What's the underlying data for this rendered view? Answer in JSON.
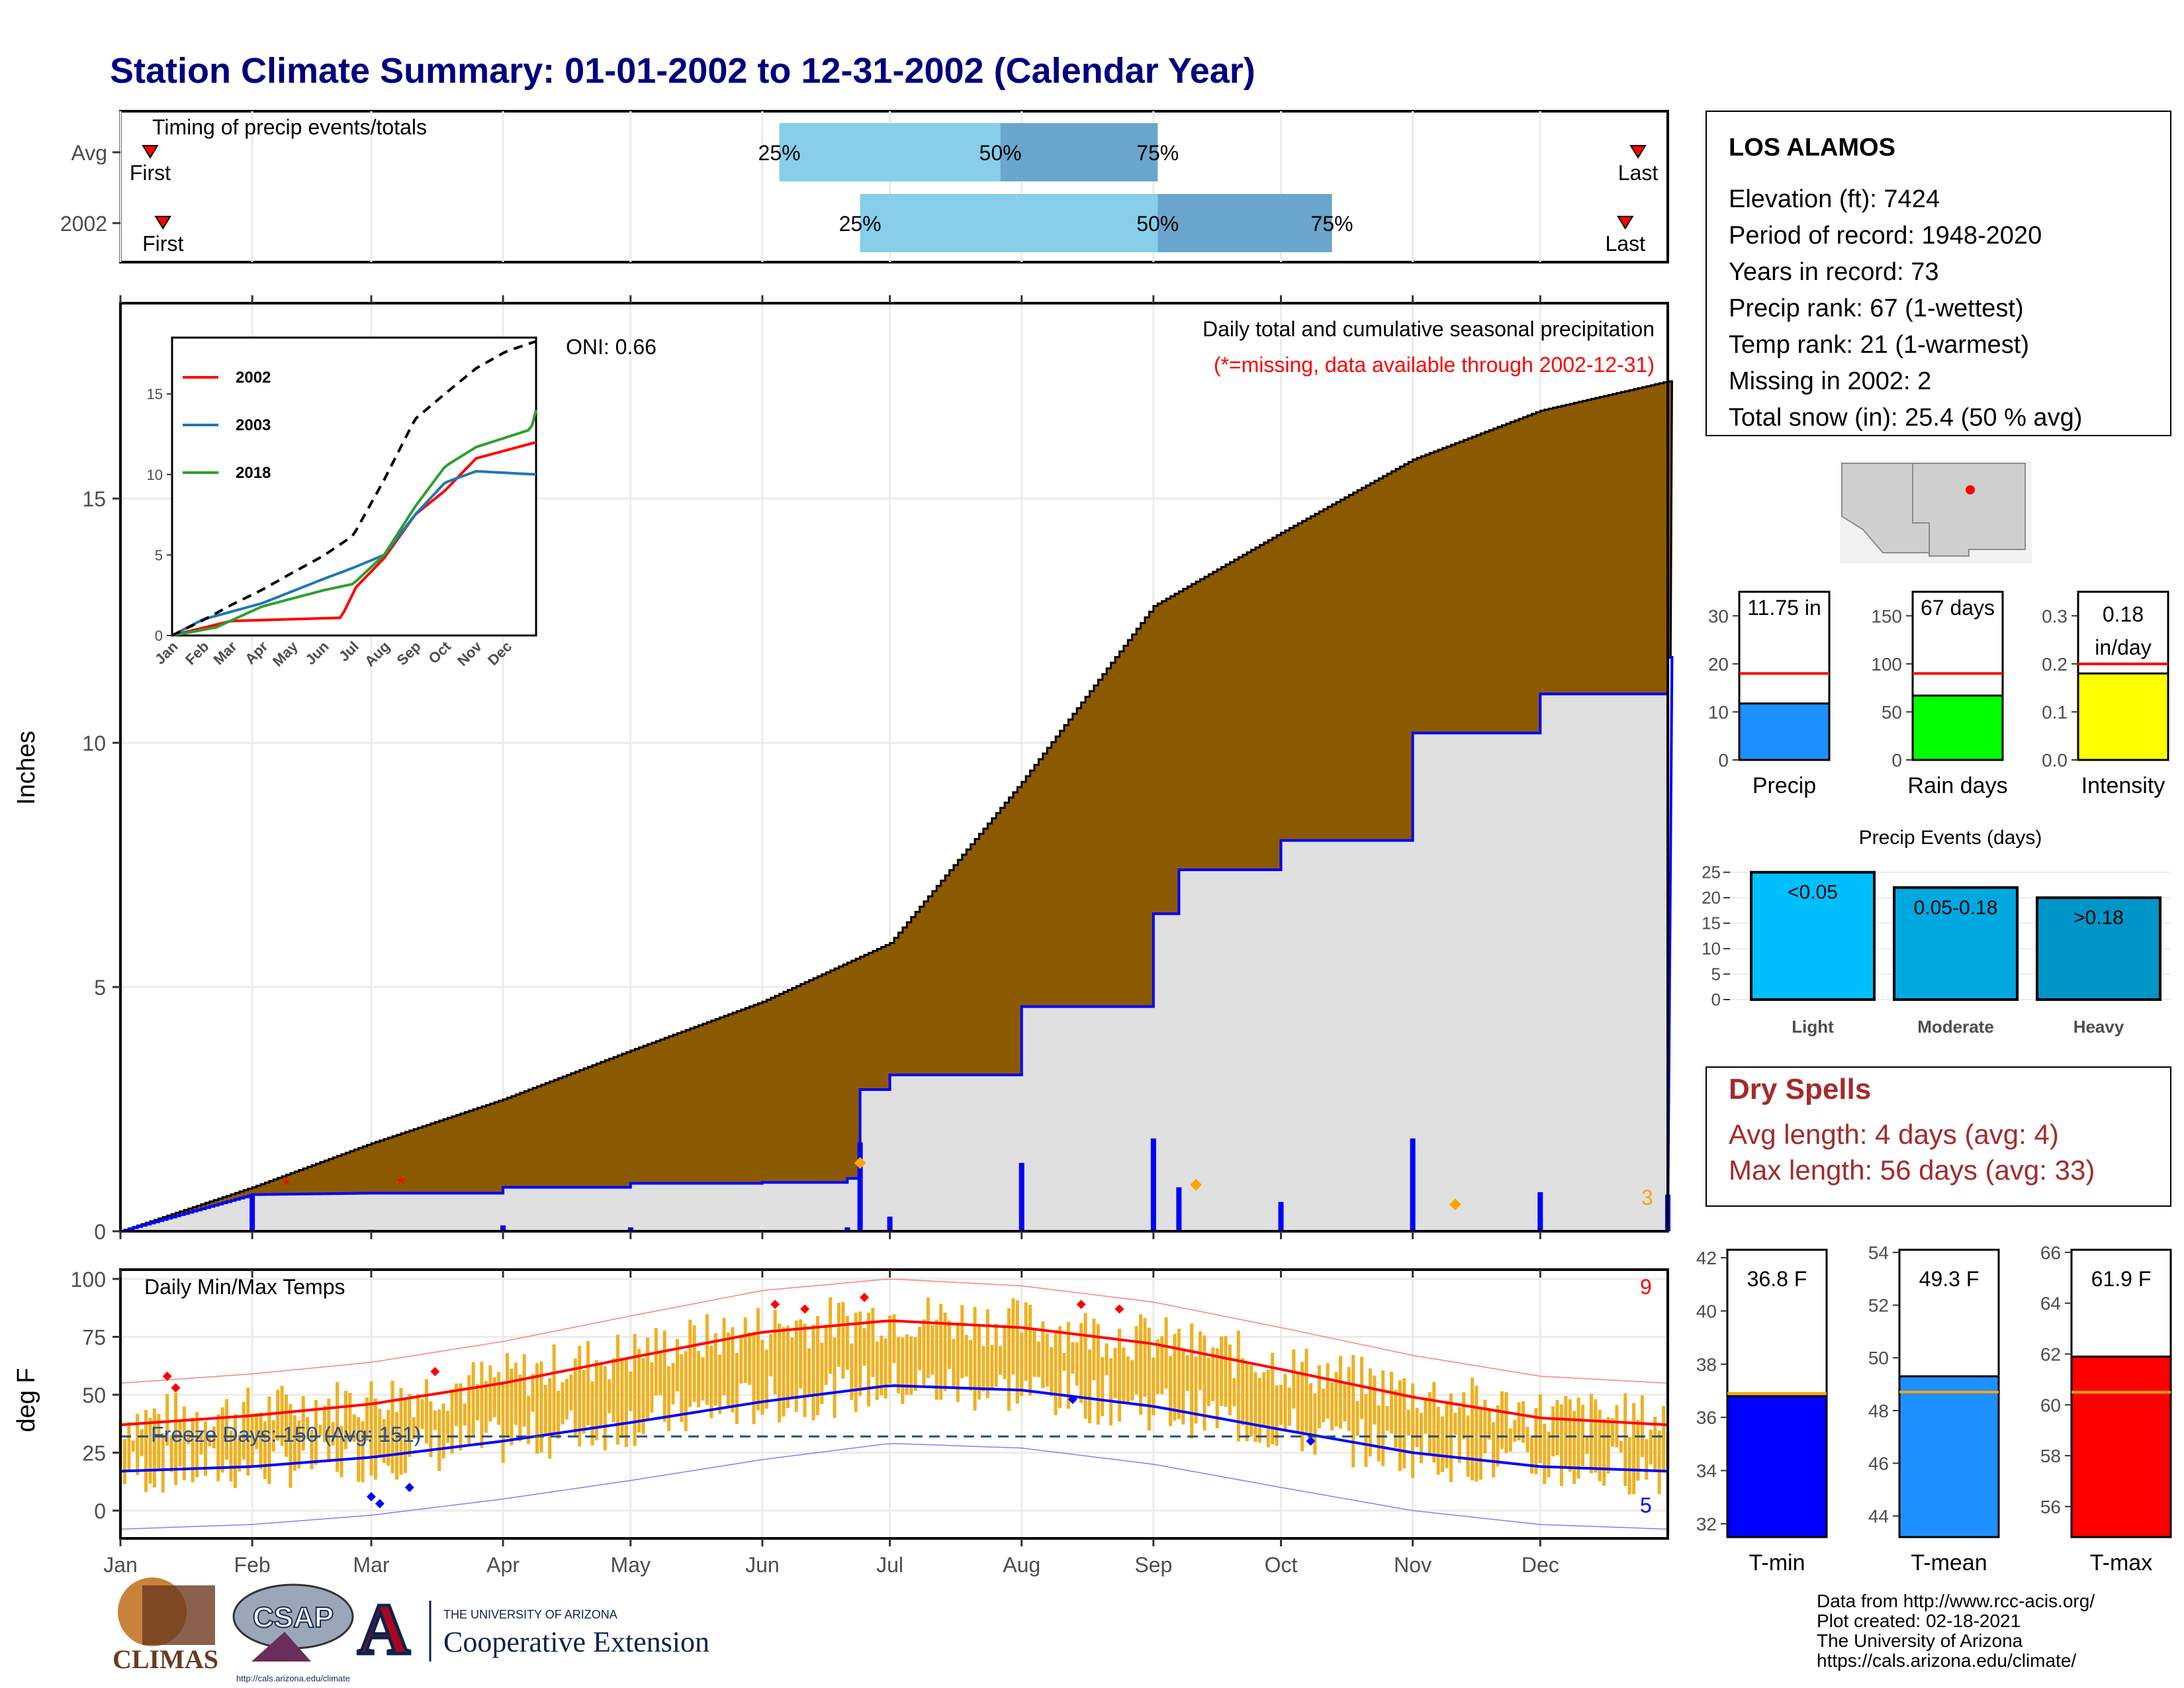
{
  "title": "Station Climate Summary: 01-01-2002 to 12-31-2002 (Calendar Year)",
  "colors": {
    "title": "#00007f",
    "cumulative_fill": "#8b5a00",
    "observed_fill": "#e0e0e0",
    "observed_line": "#0000ff",
    "temp_bar": "#f0b020",
    "tmax_line": "#ff0000",
    "tmin_line": "#0000ff",
    "dry_spell": "#a52a2a"
  },
  "timing_panel": {
    "label": "Timing of precip events/totals",
    "rows": [
      {
        "name": "Avg",
        "first": "First",
        "last": "Last",
        "p25": "25%",
        "p50": "50%",
        "p75": "75%",
        "first_doy": 8,
        "p25_doy": 156,
        "p50_doy": 208,
        "p75_doy": 245,
        "last_doy": 358
      },
      {
        "name": "2002",
        "first": "First",
        "last": "Last",
        "p25": "25%",
        "p50": "50%",
        "p75": "75%",
        "first_doy": 11,
        "p25_doy": 175,
        "p50_doy": 245,
        "p75_doy": 286,
        "last_doy": 355
      }
    ]
  },
  "precip_panel": {
    "title": "Daily total and cumulative seasonal precipitation",
    "subtitle": "(*=missing, data available through 2002-12-31)",
    "ylabel": "Inches",
    "oni": "ONI: 0.66",
    "count_label": "3",
    "yticks": [
      "0",
      "5",
      "10",
      "15"
    ]
  },
  "inset": {
    "legend": [
      "2002",
      "2003",
      "2018"
    ],
    "colors": [
      "#ff0000",
      "#1f77b4",
      "#2ca02c"
    ],
    "months": [
      "Jan",
      "Feb",
      "Mar",
      "Apr",
      "May",
      "Jun",
      "Jul",
      "Aug",
      "Sep",
      "Oct",
      "Nov",
      "Dec"
    ],
    "yticks": [
      "0",
      "5",
      "10",
      "15"
    ]
  },
  "temp_panel": {
    "title": "Daily Min/Max Temps",
    "ylabel": "deg F",
    "freeze": "Freeze Days: 150 (Avg: 151)",
    "hot_count": "9",
    "cold_count": "5",
    "yticks": [
      "0",
      "25",
      "50",
      "75",
      "100"
    ]
  },
  "months": [
    "Jan",
    "Feb",
    "Mar",
    "Apr",
    "May",
    "Jun",
    "Jul",
    "Aug",
    "Sep",
    "Oct",
    "Nov",
    "Dec"
  ],
  "station": {
    "name": "LOS ALAMOS",
    "lines": [
      "Elevation (ft): 7424",
      "Period of record: 1948-2020",
      "Years in record: 73",
      "Precip rank: 67 (1-wettest)",
      "Temp rank: 21 (1-warmest)",
      "Missing in 2002: 2",
      "Total snow (in): 25.4 (50 % avg)"
    ]
  },
  "gauges": [
    {
      "label": "Precip",
      "value_text": "11.75 in",
      "value": 11.75,
      "avg": 18,
      "ymax": 35,
      "yticks": [
        "0",
        "10",
        "20",
        "30"
      ],
      "color": "#1e90ff"
    },
    {
      "label": "Rain days",
      "value_text": "67 days",
      "value": 67,
      "avg": 90,
      "ymax": 175,
      "yticks": [
        "0",
        "50",
        "100",
        "150"
      ],
      "color": "#00ff00"
    },
    {
      "label": "Intensity",
      "value_text": "0.18 in/day",
      "value": 0.18,
      "avg": 0.2,
      "ymax": 0.35,
      "yticks": [
        "0.0",
        "0.1",
        "0.2",
        "0.3"
      ],
      "color": "#ffff00"
    }
  ],
  "events": {
    "title": "Precip Events (days)",
    "yticks": [
      "0",
      "5",
      "10",
      "15",
      "20",
      "25"
    ],
    "bars": [
      {
        "category": "Light",
        "label": "<0.05",
        "value": 25,
        "color": "#00bfff"
      },
      {
        "category": "Moderate",
        "label": "0.05-0.18",
        "value": 22,
        "color": "#00a8e0"
      },
      {
        "category": "Heavy",
        "label": ">0.18",
        "value": 20,
        "color": "#0095c8"
      }
    ]
  },
  "dry_spells": {
    "title": "Dry Spells",
    "avg": "Avg length: 4 days (avg: 4)",
    "max": "Max length: 56 days (avg: 33)"
  },
  "temp_gauges": [
    {
      "label": "T-min",
      "value_text": "36.8 F",
      "value": 36.8,
      "avg": 36.9,
      "ymin": 31.5,
      "ymax": 42.3,
      "yticks": [
        "32",
        "34",
        "36",
        "38",
        "40",
        "42"
      ],
      "color": "#0000ff"
    },
    {
      "label": "T-mean",
      "value_text": "49.3 F",
      "value": 49.3,
      "avg": 48.7,
      "ymin": 43.2,
      "ymax": 54.1,
      "yticks": [
        "44",
        "46",
        "48",
        "50",
        "52",
        "54"
      ],
      "color": "#1e90ff"
    },
    {
      "label": "T-max",
      "value_text": "61.9 F",
      "value": 61.9,
      "avg": 60.5,
      "ymin": 54.8,
      "ymax": 66.1,
      "yticks": [
        "56",
        "58",
        "60",
        "62",
        "64",
        "66"
      ],
      "color": "#ff0000"
    }
  ],
  "footer": {
    "lines": [
      "Data from http://www.rcc-acis.org/",
      "Plot created: 02-18-2021",
      "The University of Arizona",
      "https://cals.arizona.edu/climate/"
    ],
    "logo_climas": "CLIMAS",
    "logo_csap": "CSAP",
    "logo_csap_url": "http://cals.arizona.edu/climate",
    "uofa_small": "THE UNIVERSITY OF ARIZONA",
    "uofa_big": "Cooperative Extension"
  },
  "chart_data": [
    {
      "type": "area",
      "title": "Daily total and cumulative seasonal precipitation",
      "ylabel": "Inches",
      "ylim": [
        0,
        19
      ],
      "x_unit": "day of year",
      "series": [
        {
          "name": "2002",
          "x": [
            1,
            32,
            60,
            91,
            121,
            152,
            172,
            175,
            182,
            213,
            244,
            250,
            274,
            305,
            335,
            365
          ],
          "values": [
            0,
            0.75,
            0.78,
            0.9,
            0.98,
            1.0,
            1.08,
            2.9,
            3.2,
            4.6,
            6.5,
            7.4,
            8.0,
            10.2,
            11.0,
            11.75
          ]
        },
        {
          "name": "Average",
          "x": [
            1,
            32,
            60,
            91,
            121,
            152,
            182,
            213,
            244,
            274,
            305,
            335,
            365
          ],
          "values": [
            0,
            0.9,
            1.8,
            2.7,
            3.7,
            4.7,
            5.9,
            9.2,
            12.8,
            14.3,
            15.8,
            16.8,
            17.4
          ]
        }
      ]
    },
    {
      "type": "line",
      "title": "Daily Min/Max Temps",
      "ylabel": "deg F",
      "ylim": [
        -10,
        102
      ],
      "x_unit": "day of year",
      "series": [
        {
          "name": "Avg Max",
          "x": [
            1,
            32,
            60,
            91,
            121,
            152,
            182,
            213,
            244,
            274,
            305,
            335,
            365
          ],
          "values": [
            37,
            41,
            46,
            55,
            66,
            77,
            82,
            79,
            72,
            61,
            49,
            40,
            37
          ]
        },
        {
          "name": "Avg Min",
          "x": [
            1,
            32,
            60,
            91,
            121,
            152,
            182,
            213,
            244,
            274,
            305,
            335,
            365
          ],
          "values": [
            17,
            19,
            23,
            30,
            38,
            47,
            54,
            52,
            45,
            35,
            25,
            19,
            17
          ]
        }
      ]
    }
  ]
}
